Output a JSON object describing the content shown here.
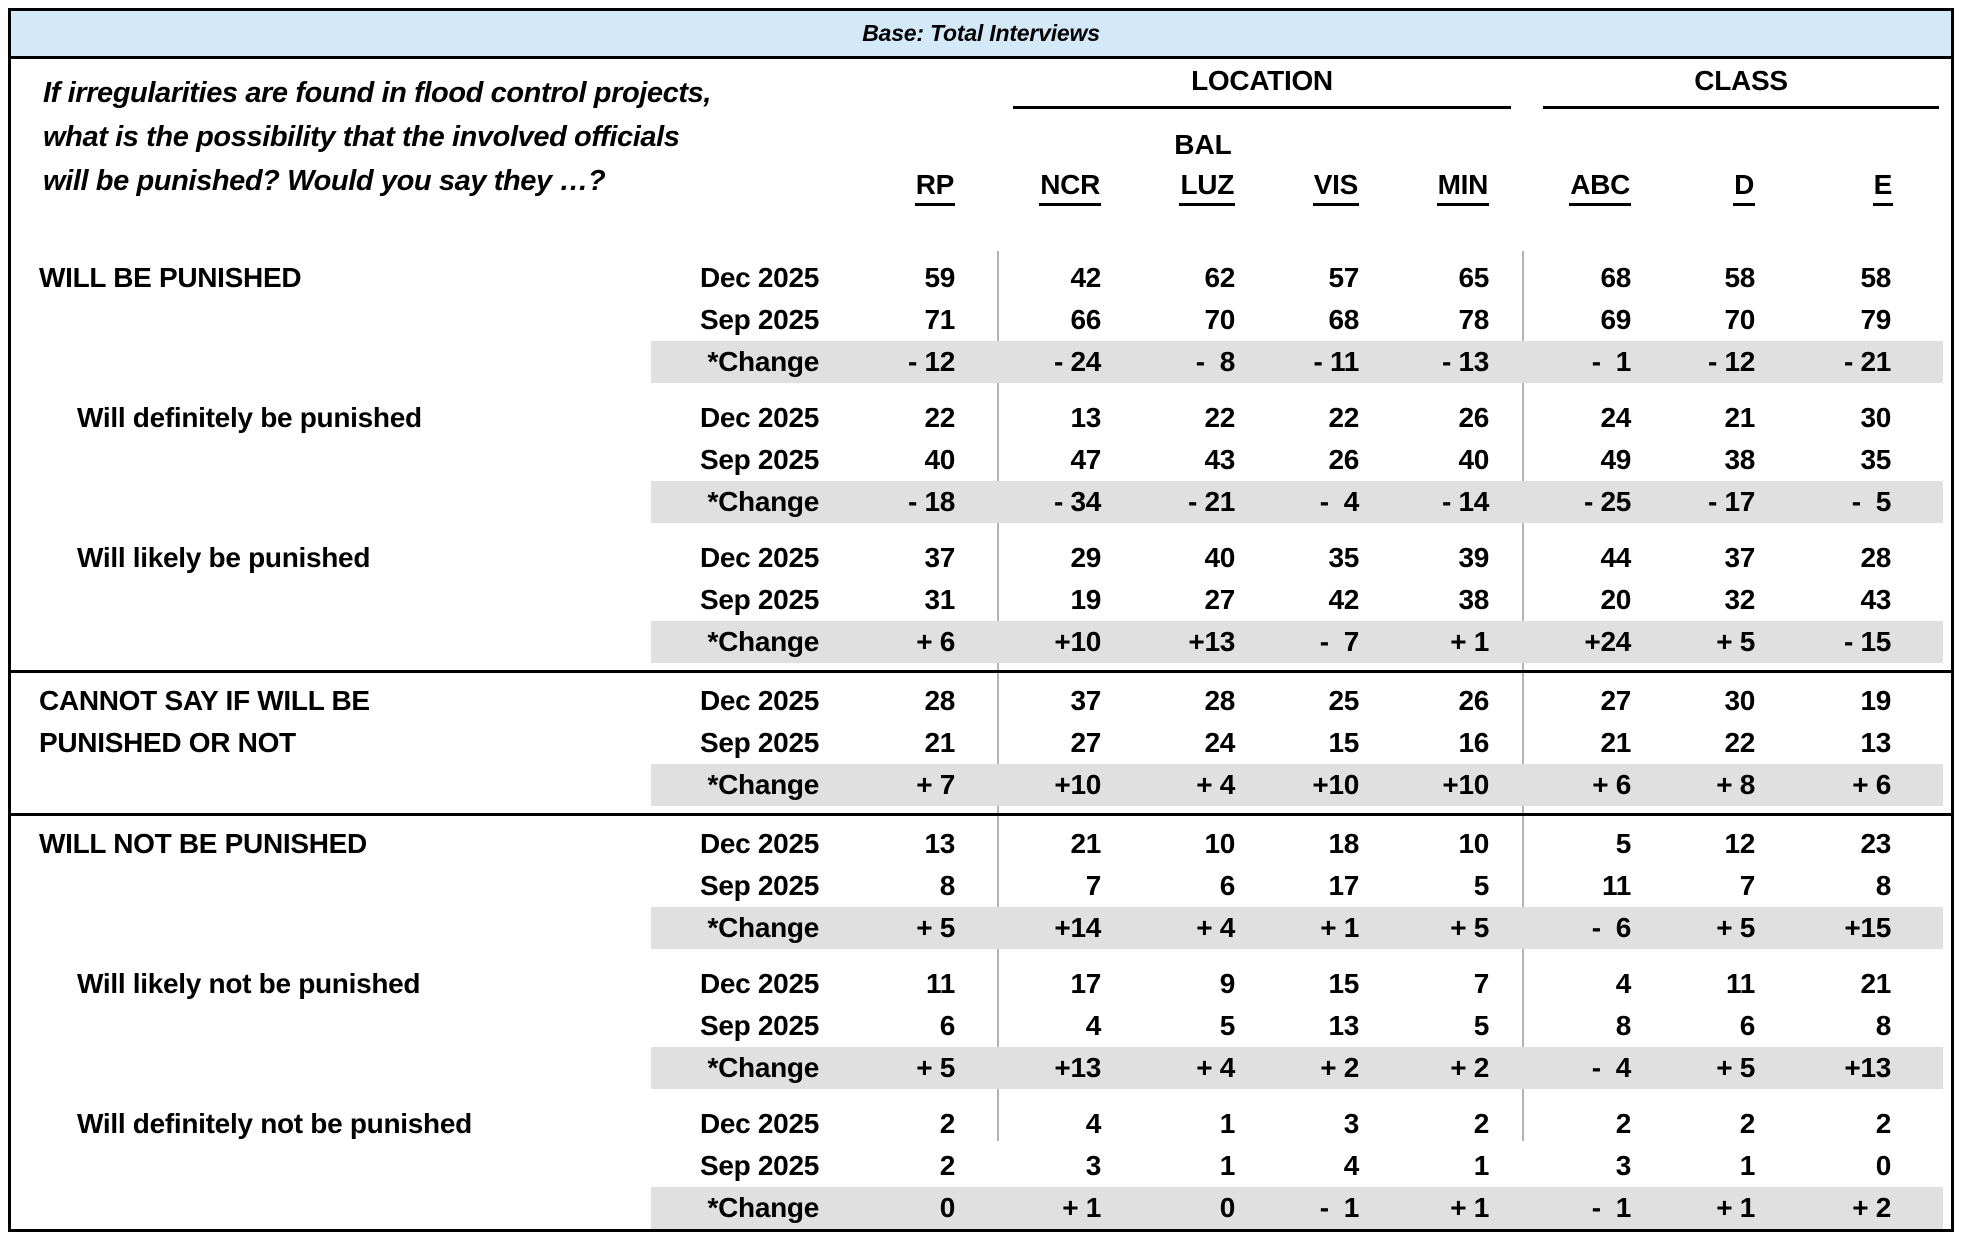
{
  "title_bar": {
    "label": "Base: Total Interviews"
  },
  "question": {
    "line1": "If irregularities are found in flood control projects,",
    "line2": "what is the possibility that the involved officials",
    "line3": "will be punished? Would you say they …?"
  },
  "headers": {
    "location": "LOCATION",
    "class_label": "CLASS",
    "bal": "BAL",
    "cols": [
      "RP",
      "NCR",
      "LUZ",
      "VIS",
      "MIN",
      "ABC",
      "D",
      "E"
    ]
  },
  "row_labels": {
    "dec": "Dec 2025",
    "sep": "Sep 2025",
    "change": "*Change"
  },
  "groups": [
    {
      "label": "WILL BE PUNISHED",
      "label2": "",
      "dec": [
        "59",
        "42",
        "62",
        "57",
        "65",
        "68",
        "58",
        "58"
      ],
      "sep": [
        "71",
        "66",
        "70",
        "68",
        "78",
        "69",
        "70",
        "79"
      ],
      "change": [
        "- 12",
        "- 24",
        "-  8",
        "- 11",
        "- 13",
        "-  1",
        "- 12",
        "- 21"
      ]
    },
    {
      "label": "Will definitely be punished",
      "label2": "",
      "dec": [
        "22",
        "13",
        "22",
        "22",
        "26",
        "24",
        "21",
        "30"
      ],
      "sep": [
        "40",
        "47",
        "43",
        "26",
        "40",
        "49",
        "38",
        "35"
      ],
      "change": [
        "- 18",
        "- 34",
        "- 21",
        "-  4",
        "- 14",
        "- 25",
        "- 17",
        "-  5"
      ]
    },
    {
      "label": "Will likely be punished",
      "label2": "",
      "dec": [
        "37",
        "29",
        "40",
        "35",
        "39",
        "44",
        "37",
        "28"
      ],
      "sep": [
        "31",
        "19",
        "27",
        "42",
        "38",
        "20",
        "32",
        "43"
      ],
      "change": [
        "+ 6",
        "+10",
        "+13",
        "-  7",
        "+ 1",
        "+24",
        "+ 5",
        "- 15"
      ]
    },
    {
      "label": "CANNOT SAY IF WILL BE",
      "label2": "PUNISHED OR NOT",
      "dec": [
        "28",
        "37",
        "28",
        "25",
        "26",
        "27",
        "30",
        "19"
      ],
      "sep": [
        "21",
        "27",
        "24",
        "15",
        "16",
        "21",
        "22",
        "13"
      ],
      "change": [
        "+ 7",
        "+10",
        "+ 4",
        "+10",
        "+10",
        "+ 6",
        "+ 8",
        "+ 6"
      ]
    },
    {
      "label": "WILL NOT BE PUNISHED",
      "label2": "",
      "dec": [
        "13",
        "21",
        "10",
        "18",
        "10",
        "5",
        "12",
        "23"
      ],
      "sep": [
        "8",
        "7",
        "6",
        "17",
        "5",
        "11",
        "7",
        "8"
      ],
      "change": [
        "+ 5",
        "+14",
        "+ 4",
        "+ 1",
        "+ 5",
        "-  6",
        "+ 5",
        "+15"
      ]
    },
    {
      "label": "Will likely not be punished",
      "label2": "",
      "dec": [
        "11",
        "17",
        "9",
        "15",
        "7",
        "4",
        "11",
        "21"
      ],
      "sep": [
        "6",
        "4",
        "5",
        "13",
        "5",
        "8",
        "6",
        "8"
      ],
      "change": [
        "+ 5",
        "+13",
        "+ 4",
        "+ 2",
        "+ 2",
        "-  4",
        "+ 5",
        "+13"
      ]
    },
    {
      "label": "Will definitely not be punished",
      "label2": "",
      "dec": [
        "2",
        "4",
        "1",
        "3",
        "2",
        "2",
        "2",
        "2"
      ],
      "sep": [
        "2",
        "3",
        "1",
        "4",
        "1",
        "3",
        "1",
        "0"
      ],
      "change": [
        "0",
        "+ 1",
        "0",
        "-  1",
        "+ 1",
        "-  1",
        "+ 1",
        "+ 2"
      ]
    }
  ],
  "colors": {
    "title_bg": "#d3e9f8",
    "change_bg": "#e0e0e0",
    "divider": "#b4b4b4"
  }
}
